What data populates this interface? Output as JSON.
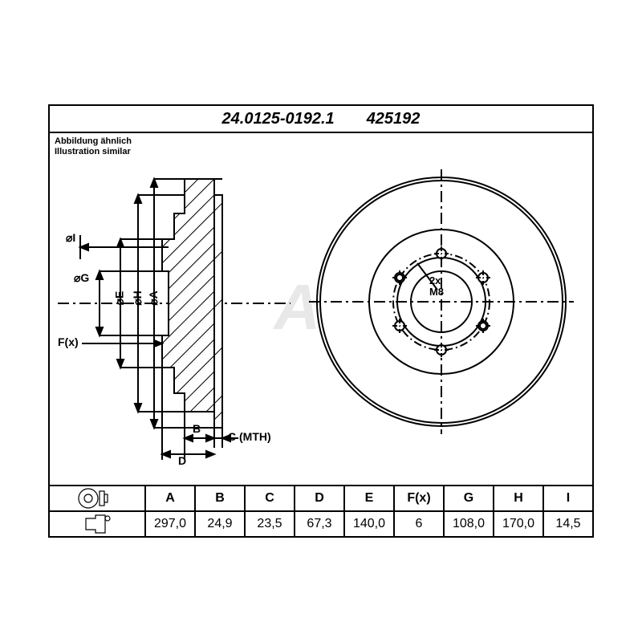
{
  "header": {
    "part_number": "24.0125-0192.1",
    "short_code": "425192"
  },
  "caption": {
    "line1": "Abbildung ähnlich",
    "line2": "Illustration similar"
  },
  "watermark": "Ate",
  "diagram": {
    "side_view": {
      "labels": {
        "diam_I": "⌀I",
        "diam_G": "⌀G",
        "diam_E": "⌀E",
        "diam_H": "⌀H",
        "diam_A": "⌀A",
        "Fx": "F(x)",
        "B": "B",
        "C": "C (MTH)",
        "D": "D"
      },
      "stroke": "#000000",
      "line_width": 2
    },
    "front_view": {
      "labels": {
        "bolt": "2x",
        "bolt_size": "M8"
      },
      "outer_radius": 155,
      "ring_inner_radius": 90,
      "hub_radius": 55,
      "bore_radius": 38,
      "bolt_circle_radius": 60,
      "num_bolt_holes": 6,
      "bolt_hole_radius": 6,
      "small_hole_radius": 4,
      "stroke": "#000000",
      "fill": "#ffffff",
      "line_width": 2
    }
  },
  "table": {
    "columns": [
      "A",
      "B",
      "C",
      "D",
      "E",
      "F(x)",
      "G",
      "H",
      "I"
    ],
    "values": [
      "297,0",
      "24,9",
      "23,5",
      "67,3",
      "140,0",
      "6",
      "108,0",
      "170,0",
      "14,5"
    ]
  },
  "colors": {
    "line": "#000000",
    "bg": "#ffffff",
    "watermark": "#e8e8e8"
  }
}
